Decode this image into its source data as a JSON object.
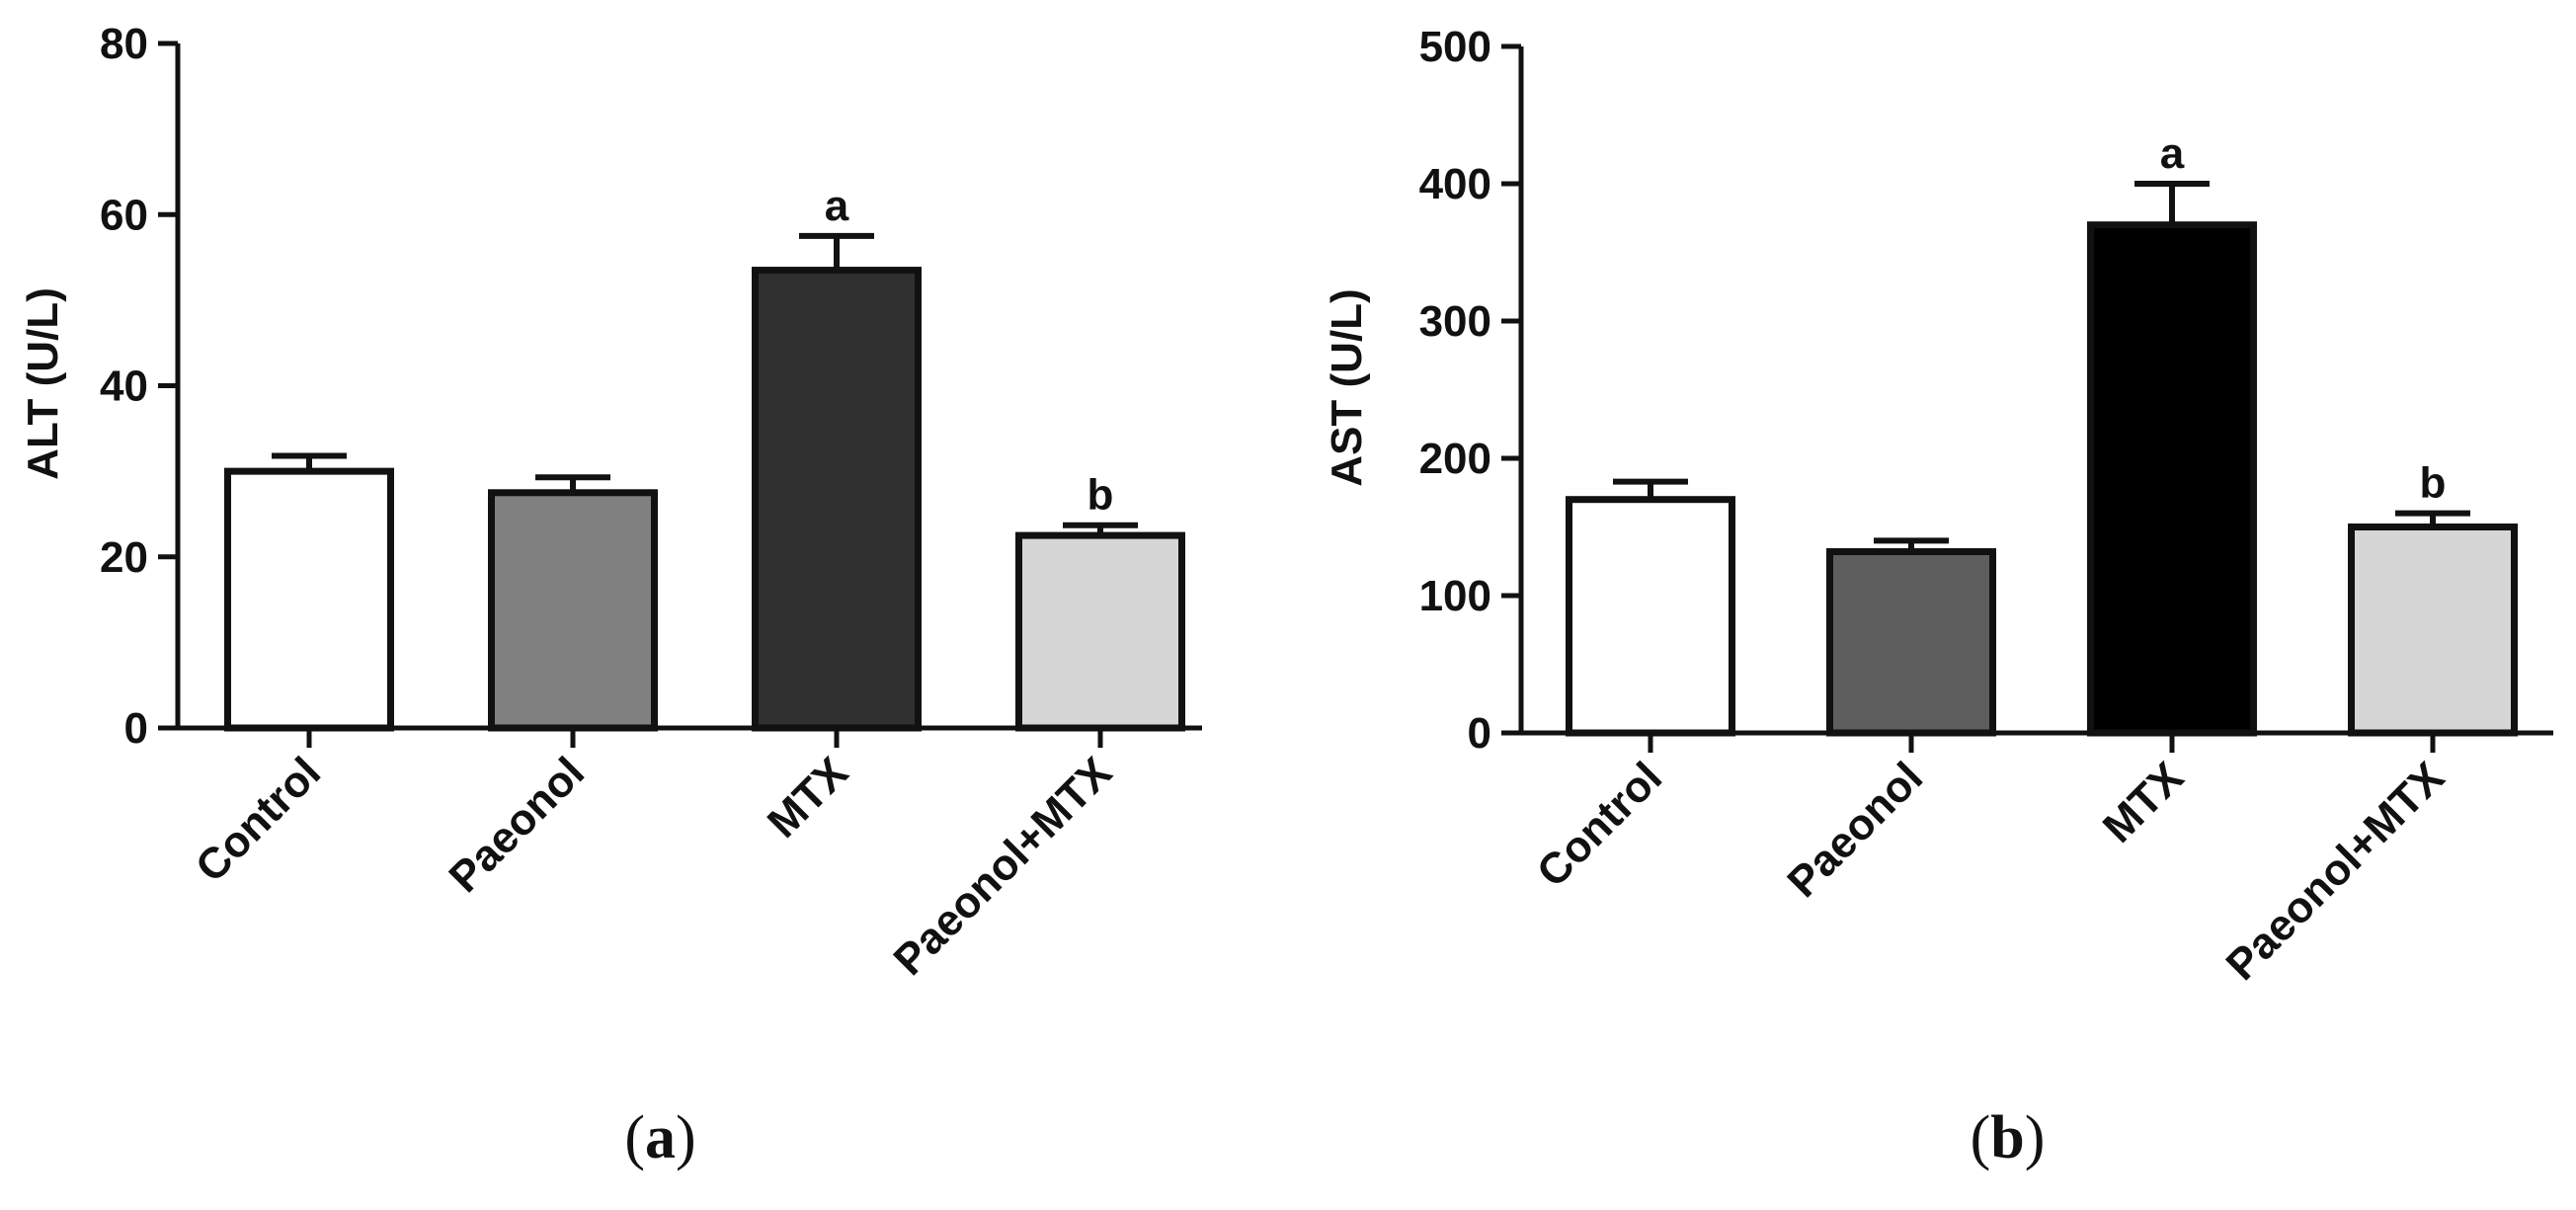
{
  "chart_data": [
    {
      "type": "bar",
      "panel_label": {
        "open": "(",
        "letter": "a",
        "close": ")"
      },
      "categories": [
        "Control",
        "Paeonol",
        "MTX",
        "Paeonol+MTX"
      ],
      "values": [
        30,
        27.5,
        53.5,
        22.5
      ],
      "errors": [
        1.8,
        1.8,
        4,
        1.2
      ],
      "annotations": [
        "",
        "",
        "a",
        "b"
      ],
      "colors": [
        "#ffffff",
        "#808080",
        "#303030",
        "#d6d6d6"
      ],
      "ylabel": "ALT (U/L)",
      "ylim": [
        0,
        80
      ],
      "yticks": [
        0,
        20,
        40,
        60,
        80
      ],
      "title": "",
      "xlabel": "",
      "grid": false
    },
    {
      "type": "bar",
      "panel_label": {
        "open": "(",
        "letter": "b",
        "close": ")"
      },
      "categories": [
        "Control",
        "Paeonol",
        "MTX",
        "Paeonol+MTX"
      ],
      "values": [
        170,
        132,
        370,
        150
      ],
      "errors": [
        13,
        8,
        30,
        10
      ],
      "annotations": [
        "",
        "",
        "a",
        "b"
      ],
      "colors": [
        "#ffffff",
        "#5e5e5e",
        "#000000",
        "#d6d6d6"
      ],
      "ylabel": "AST (U/L)",
      "ylim": [
        0,
        500
      ],
      "yticks": [
        0,
        100,
        200,
        300,
        400,
        500
      ],
      "title": "",
      "xlabel": "",
      "grid": false
    }
  ]
}
